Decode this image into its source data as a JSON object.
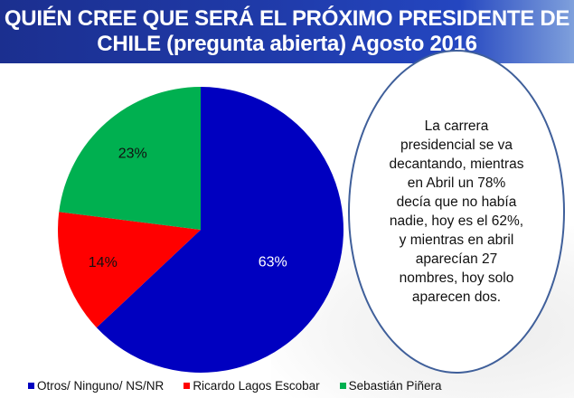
{
  "header": {
    "line1": "QUIÉN CREE QUE SERÁ EL PRÓXIMO PRESIDENTE DE",
    "line2": "CHILE (pregunta abierta)  Agosto 2016"
  },
  "note": "La carrera presidencial se va decantando, mientras en Abril un 78% decía que no había nadie, hoy es el 62%, y mientras en abril aparecían 27 nombres, hoy solo aparecen dos.",
  "chart_data": {
    "type": "pie",
    "title": "QUIÉN CREE QUE SERÁ EL PRÓXIMO PRESIDENTE DE CHILE (pregunta abierta)  Agosto 2016",
    "categories": [
      "Otros/ Ninguno/ NS/NR",
      "Ricardo Lagos Escobar",
      "Sebastián Piñera"
    ],
    "values": [
      63,
      14,
      23
    ],
    "labels": [
      "63%",
      "14%",
      "23%"
    ],
    "colors": [
      "#0000c0",
      "#ff0000",
      "#00b050"
    ],
    "legend_position": "bottom"
  }
}
